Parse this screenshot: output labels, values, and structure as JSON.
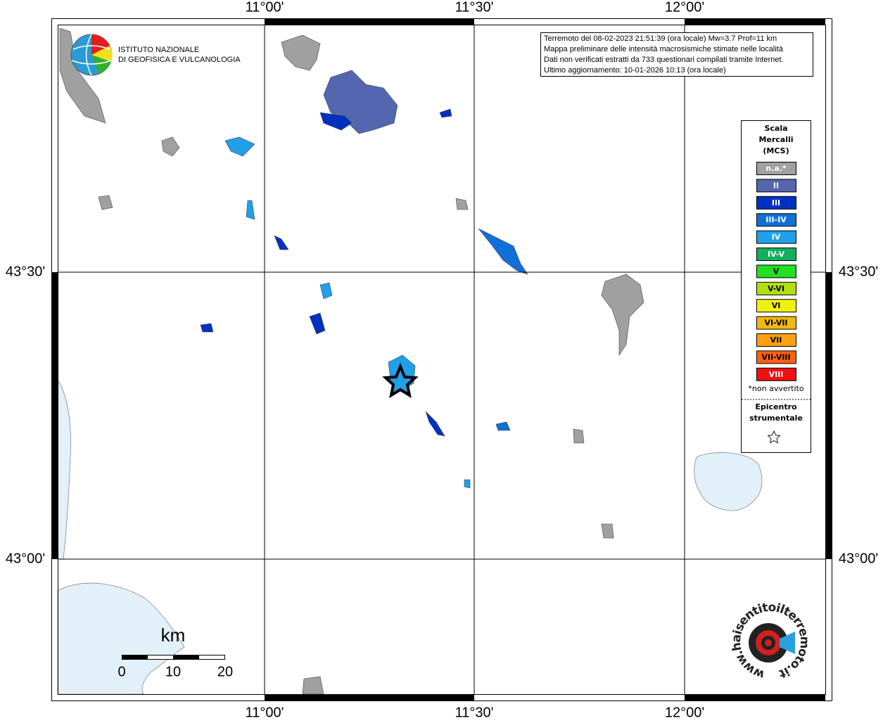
{
  "header": {
    "lines": [
      "Terremoto del 08-02-2023 21:51:39 (ora locale) Mw=3.7 Prof=11 km",
      "Mappa preliminare delle intensità macrosismiche stimate nelle località",
      "Dati non verificati estratti da 733 questionari compilati tramite Internet.",
      "Ultimo aggiornamento: 10-01-2026 10:13 (ora locale)"
    ]
  },
  "institute": {
    "line1": "ISTITUTO NAZIONALE",
    "line2": "DI GEOFISICA E VULCANOLOGIA"
  },
  "grid": {
    "lon_labels": [
      "11°00'",
      "11°30'",
      "12°00'"
    ],
    "lat_labels": [
      "43°30'",
      "43°00'"
    ]
  },
  "legend": {
    "title": [
      "Scala",
      "Mercalli",
      "(MCS)"
    ],
    "items": [
      {
        "label": "n.a.*",
        "color": "#a0a0a0"
      },
      {
        "label": "II",
        "color": "#5566b0"
      },
      {
        "label": "III",
        "color": "#0030c0"
      },
      {
        "label": "III-IV",
        "color": "#1070d8"
      },
      {
        "label": "IV",
        "color": "#20a0e8"
      },
      {
        "label": "IV-V",
        "color": "#10b060"
      },
      {
        "label": "V",
        "color": "#20e020"
      },
      {
        "label": "V-VI",
        "color": "#b0e010"
      },
      {
        "label": "VI",
        "color": "#f0f010"
      },
      {
        "label": "VI-VII",
        "color": "#f0b810"
      },
      {
        "label": "VII",
        "color": "#ffa010"
      },
      {
        "label": "VII-VIII",
        "color": "#ff6010"
      },
      {
        "label": "VIII",
        "color": "#f01010"
      }
    ],
    "note": "*non avvertito",
    "epicenter": [
      "Epicentro",
      "strumentale"
    ]
  },
  "scale_bar": {
    "unit": "km",
    "labels": [
      "0",
      "10",
      "20"
    ]
  },
  "site_logo": {
    "text": "www.haisentitoilterremoto.it"
  }
}
